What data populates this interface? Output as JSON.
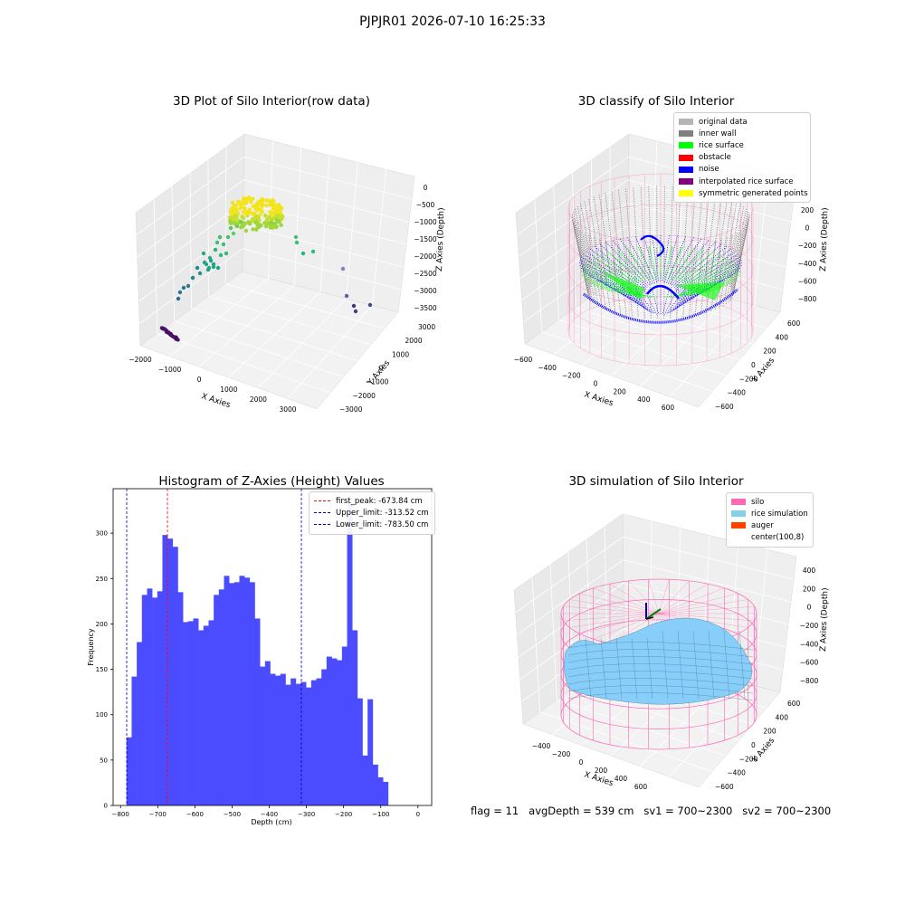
{
  "suptitle": "PJPJR01 2026-07-10 16:25:33",
  "footer": {
    "flag": "flag = 11",
    "avg": "avgDepth = 539 cm",
    "sv1": "sv1 = 700~2300",
    "sv2": "sv2 = 700~2300"
  },
  "colors": {
    "histogram_bar": "#4b4bff",
    "first_peak_line": "#ff0000",
    "limit_lines": "#0000c8",
    "silo_wireframe": "#ff69b4",
    "rice_surface_sim": "#87cefa",
    "auger": "#ff4500"
  },
  "chart_data": [
    {
      "type": "scatter3d",
      "title": "3D Plot of Silo Interior(row data)",
      "xlabel": "X Axies",
      "ylabel": "Y Axies",
      "zlabel": "Z Axies (Depth)",
      "x_ticks": [
        "−2000",
        "−1000",
        "0",
        "1000",
        "2000",
        "3000"
      ],
      "y_ticks": [
        "−3000",
        "−2000",
        "−1000",
        "0",
        "1000",
        "2000",
        "3000"
      ],
      "z_ticks": [
        "0",
        "−500",
        "−1000",
        "−1500",
        "−2000",
        "−2500",
        "−3000",
        "−3500"
      ],
      "colormap": "viridis"
    },
    {
      "type": "scatter3d",
      "title": "3D classify of Silo Interior",
      "xlabel": "X Axies",
      "ylabel": "Y Axies",
      "zlabel": "Z Axies (Depth)",
      "x_ticks": [
        "−600",
        "−400",
        "−200",
        "0",
        "200",
        "400",
        "600"
      ],
      "y_ticks": [
        "−600",
        "−400",
        "−200",
        "0",
        "200",
        "400",
        "600"
      ],
      "z_ticks": [
        "200",
        "0",
        "−200",
        "−400",
        "−600",
        "−800"
      ],
      "legend": [
        {
          "label": "original data",
          "color": "#b4b4b4"
        },
        {
          "label": "inner wall",
          "color": "#808080"
        },
        {
          "label": "rice surface",
          "color": "#00ff00"
        },
        {
          "label": "obstacle",
          "color": "#ff0000"
        },
        {
          "label": "noise",
          "color": "#0000ff"
        },
        {
          "label": "interpolated rice surface",
          "color": "#800080"
        },
        {
          "label": "symmetric generated points",
          "color": "#ffff00"
        }
      ],
      "legend_position": "upper-right"
    },
    {
      "type": "bar",
      "title": "Histogram of Z-Axies (Height) Values",
      "xlabel": "Depth (cm)",
      "ylabel": "Frequency",
      "xlim": [
        -820,
        37
      ],
      "ylim": [
        0,
        349
      ],
      "x_ticks": [
        -800,
        -700,
        -600,
        -500,
        -400,
        -300,
        -200,
        -100,
        0
      ],
      "y_ticks": [
        0,
        50,
        100,
        150,
        200,
        250,
        300
      ],
      "bin_start": -784,
      "bin_width": 13.8,
      "values": [
        75,
        142,
        180,
        232,
        239,
        229,
        236,
        298,
        294,
        285,
        235,
        202,
        203,
        206,
        193,
        198,
        204,
        232,
        238,
        253,
        245,
        246,
        253,
        251,
        246,
        206,
        153,
        159,
        145,
        143,
        145,
        133,
        140,
        134,
        136,
        130,
        138,
        140,
        150,
        164,
        162,
        160,
        175,
        333,
        193,
        118,
        55,
        117,
        45,
        31,
        26
      ],
      "vlines": [
        {
          "label": "first_peak: -673.84 cm",
          "x": -673.84,
          "color": "#ff0000"
        },
        {
          "label": "Upper_limit: -313.52 cm",
          "x": -313.52,
          "color": "#0000c8"
        },
        {
          "label": "Lower_limit: -783.50 cm",
          "x": -783.5,
          "color": "#0000c8"
        }
      ],
      "legend_position": "upper-right"
    },
    {
      "type": "surface3d",
      "title": "3D simulation of Silo Interior",
      "xlabel": "X Axies",
      "ylabel": "Y Axies",
      "zlabel": "Z Axies (Depth)",
      "x_ticks": [
        "−400",
        "−200",
        "0",
        "200",
        "400",
        "600"
      ],
      "y_ticks": [
        "−600",
        "−400",
        "−200",
        "0",
        "200",
        "400",
        "600"
      ],
      "z_ticks": [
        "400",
        "200",
        "0",
        "−200",
        "−400",
        "−600",
        "−800"
      ],
      "legend": [
        {
          "label": "silo",
          "color": "#ff69b4"
        },
        {
          "label": "rice simulation",
          "color": "#87ceeb"
        },
        {
          "label": "auger",
          "color": "#ff4500"
        },
        {
          "label": "center(100,8)",
          "color": ""
        }
      ],
      "legend_position": "upper-right"
    }
  ]
}
